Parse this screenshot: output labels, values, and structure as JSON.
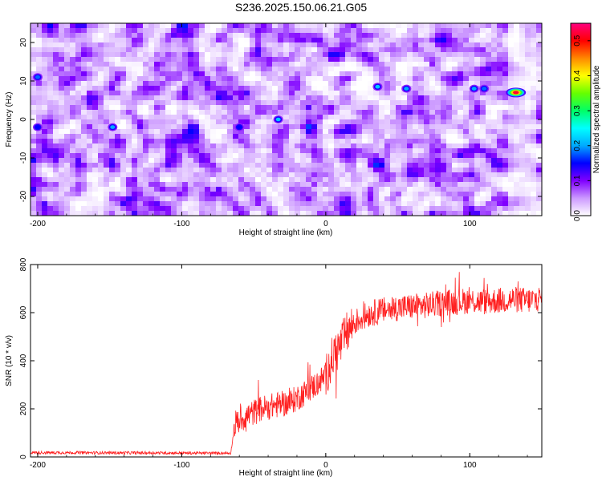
{
  "title": "S236.2025.150.06.21.G05",
  "chart_data": [
    {
      "type": "heatmap",
      "xlabel": "Height of straight line (km)",
      "ylabel": "Frequency (Hz)",
      "xlim": [
        -205,
        150
      ],
      "ylim": [
        -25,
        25
      ],
      "xticks": [
        -200,
        -100,
        0,
        100
      ],
      "yticks": [
        -20,
        -10,
        0,
        10,
        20
      ],
      "colorbar": {
        "label": "Normalized spectral amplitude",
        "range": [
          0.0,
          0.55
        ],
        "ticks": [
          0.0,
          0.1,
          0.2,
          0.3,
          0.4,
          0.5
        ],
        "colors": [
          "#ffffff",
          "#cc99ff",
          "#8000ff",
          "#0000ff",
          "#00aaff",
          "#00ffff",
          "#00ff66",
          "#66ff00",
          "#ffff00",
          "#ff8800",
          "#ff0000",
          "#ff0080"
        ]
      },
      "features": [
        {
          "x": 132,
          "y": 7,
          "value": 0.52
        },
        {
          "x": -200,
          "y": 11,
          "value": 0.18
        },
        {
          "x": -148,
          "y": -2,
          "value": 0.2
        },
        {
          "x": -33,
          "y": 0,
          "value": 0.22
        },
        {
          "x": 36,
          "y": 8.5,
          "value": 0.22
        },
        {
          "x": 56,
          "y": 8,
          "value": 0.2
        },
        {
          "x": 103,
          "y": 8,
          "value": 0.2
        },
        {
          "x": 110,
          "y": 8,
          "value": 0.18
        },
        {
          "x": -60,
          "y": -2,
          "value": 0.15
        },
        {
          "x": -200,
          "y": -2,
          "value": 0.15
        }
      ]
    },
    {
      "type": "line",
      "xlabel": "Height of straight line (km)",
      "ylabel": "SNR (10 * v/v)",
      "xlim": [
        -205,
        150
      ],
      "ylim": [
        0,
        800
      ],
      "xticks": [
        -200,
        -100,
        0,
        100
      ],
      "yticks": [
        0,
        200,
        400,
        600,
        800
      ],
      "color": "#ff0000",
      "x": [
        -205,
        -180,
        -150,
        -120,
        -90,
        -66,
        -63,
        -55,
        -45,
        -35,
        -25,
        -15,
        -5,
        0,
        5,
        10,
        15,
        20,
        30,
        40,
        50,
        60,
        70,
        80,
        90,
        100,
        110,
        120,
        130,
        140,
        150
      ],
      "y": [
        18,
        18,
        17,
        17,
        16,
        16,
        140,
        170,
        200,
        215,
        225,
        265,
        310,
        340,
        420,
        460,
        520,
        560,
        595,
        610,
        620,
        625,
        630,
        640,
        645,
        650,
        645,
        650,
        655,
        650,
        660
      ]
    }
  ]
}
